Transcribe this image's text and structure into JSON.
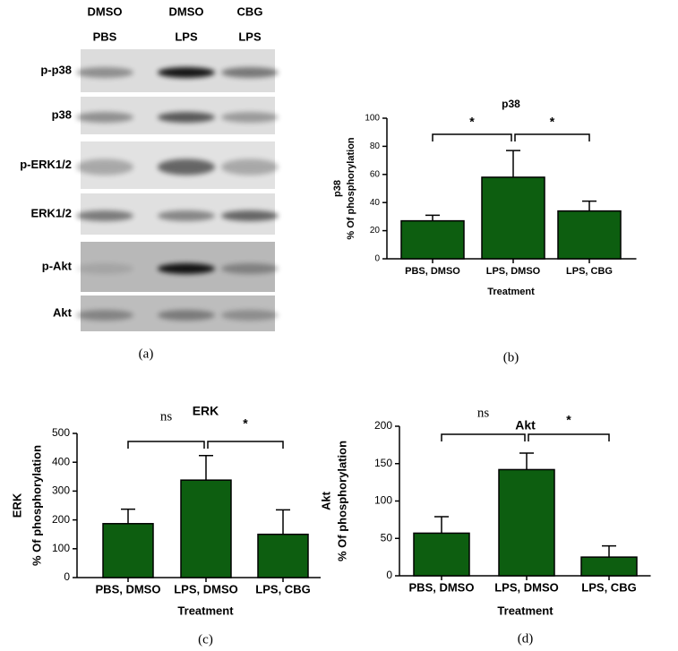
{
  "blot": {
    "columns": [
      [
        "DMSO",
        "PBS"
      ],
      [
        "DMSO",
        "LPS"
      ],
      [
        "CBG",
        "LPS"
      ]
    ],
    "rows": [
      "p-p38",
      "p38",
      "p-ERK1/2",
      "ERK1/2",
      "p-Akt",
      "Akt"
    ],
    "panel": "(a)"
  },
  "chart_data": [
    {
      "type": "bar",
      "title": "p38",
      "panel": "(b)",
      "xlabel": "Treatment",
      "ylabel": [
        "p38",
        "% Of phosphorylation"
      ],
      "categories": [
        "PBS, DMSO",
        "LPS, DMSO",
        "LPS, CBG"
      ],
      "values": [
        27,
        58,
        34
      ],
      "errors": [
        4,
        19,
        7
      ],
      "color": "#0d5e10",
      "ylim": [
        0,
        100
      ],
      "yticks": [
        0,
        20,
        40,
        60,
        80,
        100
      ],
      "annotations": [
        {
          "label": "*",
          "between": [
            0,
            1
          ]
        },
        {
          "label": "*",
          "between": [
            1,
            2
          ]
        }
      ]
    },
    {
      "type": "bar",
      "title": "ERK",
      "panel": "(c)",
      "xlabel": "Treatment",
      "ylabel": [
        "ERK",
        "% Of phosphorylation"
      ],
      "categories": [
        "PBS, DMSO",
        "LPS, DMSO",
        "LPS, CBG"
      ],
      "values": [
        187,
        338,
        150
      ],
      "errors": [
        50,
        85,
        85
      ],
      "color": "#0d5e10",
      "ylim": [
        0,
        500
      ],
      "yticks": [
        0,
        100,
        200,
        300,
        400,
        500
      ],
      "annotations": [
        {
          "label": "ns",
          "between": [
            0,
            1
          ]
        },
        {
          "label": "*",
          "between": [
            1,
            2
          ]
        }
      ]
    },
    {
      "type": "bar",
      "title": "Akt",
      "panel": "(d)",
      "xlabel": "Treatment",
      "ylabel": [
        "Akt",
        "% Of phosphorylation"
      ],
      "categories": [
        "PBS, DMSO",
        "LPS, DMSO",
        "LPS, CBG"
      ],
      "values": [
        57,
        142,
        25
      ],
      "errors": [
        22,
        22,
        15
      ],
      "color": "#0d5e10",
      "ylim": [
        0,
        200
      ],
      "yticks": [
        0,
        50,
        100,
        150,
        200
      ],
      "annotations": [
        {
          "label": "ns",
          "between": [
            0,
            1
          ]
        },
        {
          "label": "*",
          "between": [
            1,
            2
          ]
        }
      ]
    }
  ]
}
